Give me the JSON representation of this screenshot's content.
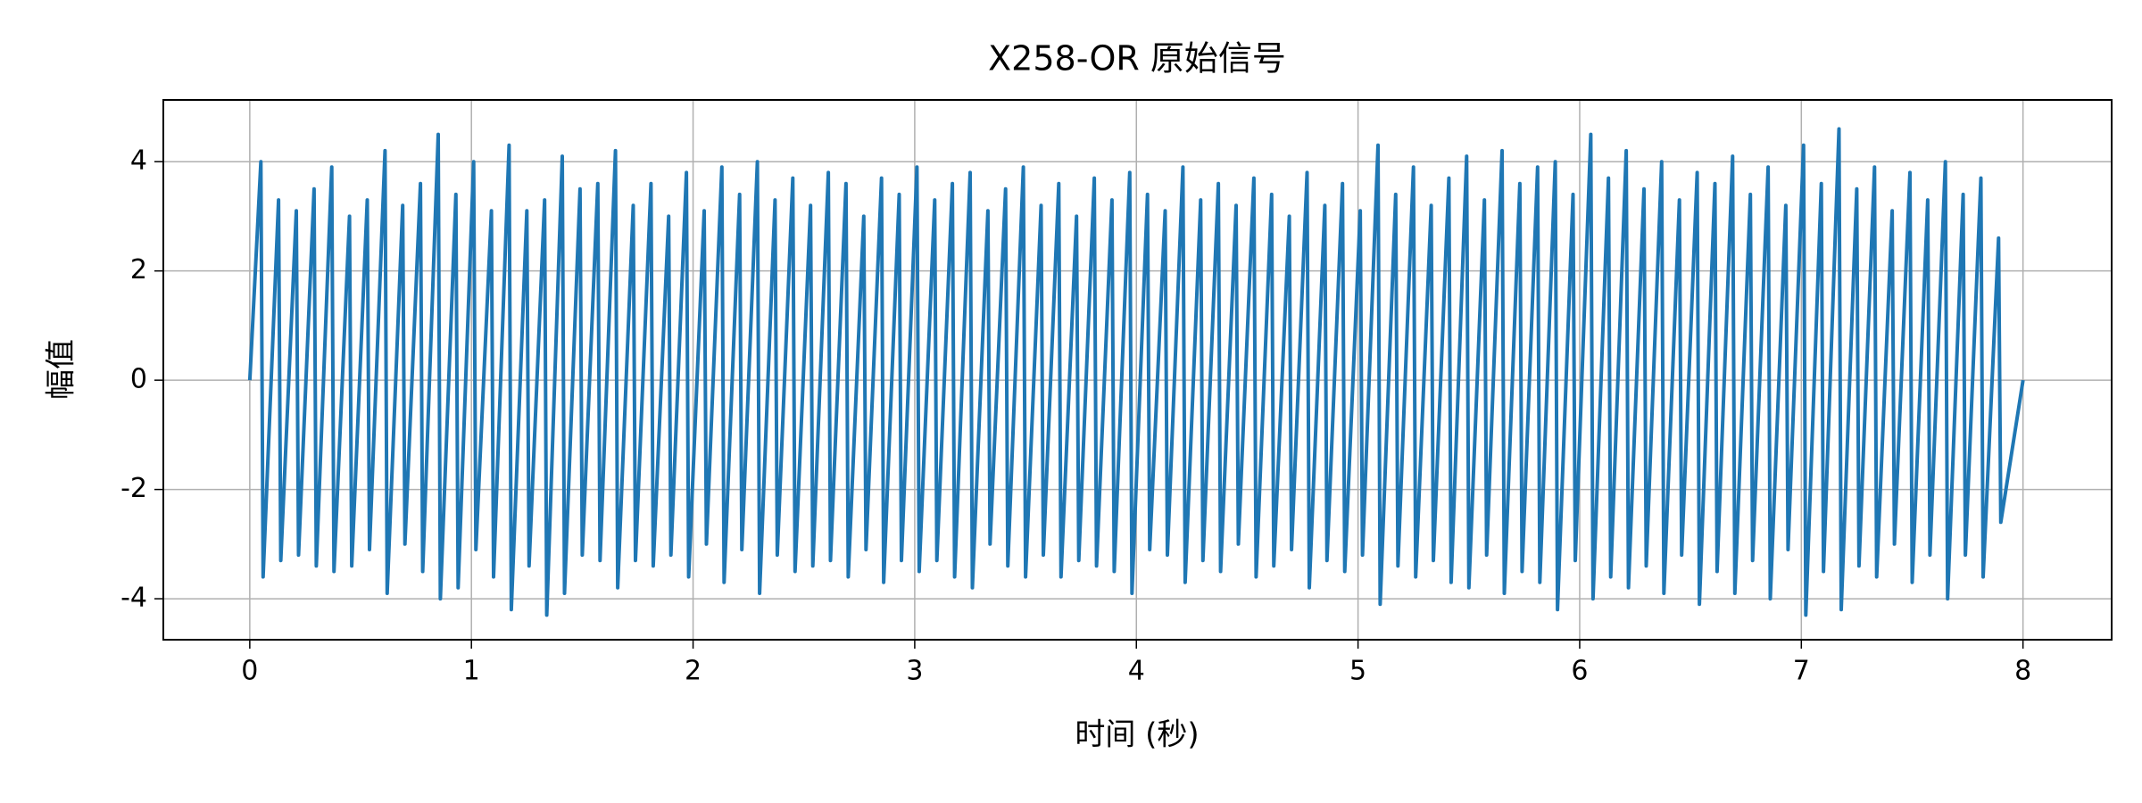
{
  "chart_data": {
    "type": "line",
    "title": "X258-OR 原始信号",
    "x_label": "时间 (秒)",
    "y_label": "幅值",
    "x": [
      0,
      0.05,
      0.06,
      0.13,
      0.14,
      0.21,
      0.22,
      0.29,
      0.3,
      0.37,
      0.38,
      0.45,
      0.46,
      0.53,
      0.54,
      0.61,
      0.62,
      0.69,
      0.7,
      0.77,
      0.78,
      0.85,
      0.86,
      0.93,
      0.94,
      1.01,
      1.02,
      1.09,
      1.1,
      1.17,
      1.18,
      1.25,
      1.26,
      1.33,
      1.34,
      1.41,
      1.42,
      1.49,
      1.5,
      1.57,
      1.58,
      1.65,
      1.66,
      1.73,
      1.74,
      1.81,
      1.82,
      1.89,
      1.9,
      1.97,
      1.98,
      2.05,
      2.06,
      2.13,
      2.14,
      2.21,
      2.22,
      2.29,
      2.3,
      2.37,
      2.38,
      2.45,
      2.46,
      2.53,
      2.54,
      2.61,
      2.62,
      2.69,
      2.7,
      2.77,
      2.78,
      2.85,
      2.86,
      2.93,
      2.94,
      3.01,
      3.02,
      3.09,
      3.1,
      3.17,
      3.18,
      3.25,
      3.26,
      3.33,
      3.34,
      3.41,
      3.42,
      3.49,
      3.5,
      3.57,
      3.58,
      3.65,
      3.66,
      3.73,
      3.74,
      3.81,
      3.82,
      3.89,
      3.9,
      3.97,
      3.98,
      4.05,
      4.06,
      4.13,
      4.14,
      4.21,
      4.22,
      4.29,
      4.3,
      4.37,
      4.38,
      4.45,
      4.46,
      4.53,
      4.54,
      4.61,
      4.62,
      4.69,
      4.7,
      4.77,
      4.78,
      4.85,
      4.86,
      4.93,
      4.94,
      5.01,
      5.02,
      5.09,
      5.1,
      5.17,
      5.18,
      5.25,
      5.26,
      5.33,
      5.34,
      5.41,
      5.42,
      5.49,
      5.5,
      5.57,
      5.58,
      5.65,
      5.66,
      5.73,
      5.74,
      5.81,
      5.82,
      5.89,
      5.9,
      5.97,
      5.98,
      6.05,
      6.06,
      6.13,
      6.14,
      6.21,
      6.22,
      6.29,
      6.3,
      6.37,
      6.38,
      6.45,
      6.46,
      6.53,
      6.54,
      6.61,
      6.62,
      6.69,
      6.7,
      6.77,
      6.78,
      6.85,
      6.86,
      6.93,
      6.94,
      7.01,
      7.02,
      7.09,
      7.1,
      7.17,
      7.18,
      7.25,
      7.26,
      7.33,
      7.34,
      7.41,
      7.42,
      7.49,
      7.5,
      7.57,
      7.58,
      7.65,
      7.66,
      7.73,
      7.74,
      7.81,
      7.82,
      7.89,
      7.9,
      8
    ],
    "series": [
      {
        "color": "#1f77b4",
        "values": [
          0,
          4.0,
          -3.6,
          3.3,
          -3.3,
          3.1,
          -3.2,
          3.5,
          -3.4,
          3.9,
          -3.5,
          3.0,
          -3.4,
          3.3,
          -3.1,
          4.2,
          -3.9,
          3.2,
          -3.0,
          3.6,
          -3.5,
          4.5,
          -4.0,
          3.4,
          -3.8,
          4.0,
          -3.1,
          3.1,
          -3.6,
          4.3,
          -4.2,
          3.1,
          -3.4,
          3.3,
          -4.3,
          4.1,
          -3.9,
          3.5,
          -3.2,
          3.6,
          -3.3,
          4.2,
          -3.8,
          3.2,
          -3.3,
          3.6,
          -3.4,
          3.0,
          -3.2,
          3.8,
          -3.6,
          3.1,
          -3.0,
          3.9,
          -3.7,
          3.4,
          -3.1,
          4.0,
          -3.9,
          3.3,
          -3.2,
          3.7,
          -3.5,
          3.2,
          -3.4,
          3.8,
          -3.3,
          3.6,
          -3.6,
          3.0,
          -3.1,
          3.7,
          -3.7,
          3.4,
          -3.3,
          3.9,
          -3.5,
          3.3,
          -3.3,
          3.6,
          -3.6,
          3.8,
          -3.8,
          3.1,
          -3.0,
          3.5,
          -3.4,
          3.9,
          -3.6,
          3.2,
          -3.2,
          3.6,
          -3.6,
          3.0,
          -3.3,
          3.7,
          -3.4,
          3.3,
          -3.5,
          3.8,
          -3.9,
          3.4,
          -3.1,
          3.1,
          -3.2,
          3.9,
          -3.7,
          3.3,
          -3.3,
          3.6,
          -3.5,
          3.2,
          -3.0,
          3.7,
          -3.6,
          3.4,
          -3.4,
          3.0,
          -3.1,
          3.8,
          -3.8,
          3.2,
          -3.3,
          3.6,
          -3.5,
          3.1,
          -3.2,
          4.3,
          -4.1,
          3.4,
          -3.4,
          3.9,
          -3.6,
          3.2,
          -3.3,
          3.7,
          -3.7,
          4.1,
          -3.8,
          3.3,
          -3.2,
          4.2,
          -3.9,
          3.6,
          -3.5,
          3.9,
          -3.7,
          4.0,
          -4.2,
          3.4,
          -3.3,
          4.5,
          -4.0,
          3.7,
          -3.6,
          4.2,
          -3.8,
          3.5,
          -3.4,
          4.0,
          -3.9,
          3.3,
          -3.2,
          3.8,
          -4.1,
          3.6,
          -3.5,
          4.1,
          -3.9,
          3.4,
          -3.3,
          3.9,
          -4.0,
          3.2,
          -3.1,
          4.3,
          -4.3,
          3.6,
          -3.5,
          4.6,
          -4.2,
          3.5,
          -3.4,
          3.9,
          -3.6,
          3.1,
          -3.0,
          3.8,
          -3.7,
          3.3,
          -3.2,
          4.0,
          -4.0,
          3.4,
          -3.2,
          3.7,
          -3.6,
          2.6,
          -2.6,
          0
        ]
      }
    ],
    "xlim": [
      -0.39,
      8.4
    ],
    "ylim": [
      -4.75,
      5.13
    ],
    "xticks": [
      0,
      1,
      2,
      3,
      4,
      5,
      6,
      7,
      8
    ],
    "yticks": [
      -4,
      -2,
      0,
      2,
      4
    ],
    "grid": true
  }
}
